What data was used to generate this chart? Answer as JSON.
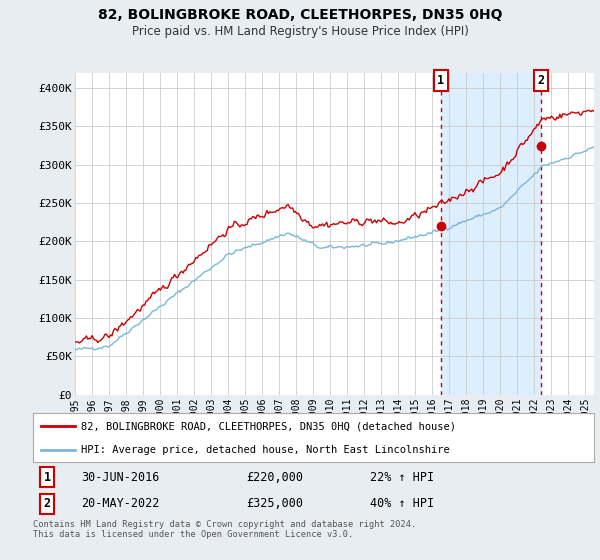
{
  "title": "82, BOLINGBROKE ROAD, CLEETHORPES, DN35 0HQ",
  "subtitle": "Price paid vs. HM Land Registry's House Price Index (HPI)",
  "ylabel_ticks": [
    "£0",
    "£50K",
    "£100K",
    "£150K",
    "£200K",
    "£250K",
    "£300K",
    "£350K",
    "£400K"
  ],
  "ytick_values": [
    0,
    50000,
    100000,
    150000,
    200000,
    250000,
    300000,
    350000,
    400000
  ],
  "ylim": [
    0,
    420000
  ],
  "xlim_start": 1995.0,
  "xlim_end": 2025.5,
  "hpi_color": "#7ab8d8",
  "price_color": "#cc0000",
  "shade_color": "#ddeeff",
  "background_color": "#e8edf2",
  "plot_bg_color": "#ffffff",
  "grid_color": "#cccccc",
  "legend_label_price": "82, BOLINGBROKE ROAD, CLEETHORPES, DN35 0HQ (detached house)",
  "legend_label_hpi": "HPI: Average price, detached house, North East Lincolnshire",
  "sale1_label": "1",
  "sale1_date": "30-JUN-2016",
  "sale1_price": "£220,000",
  "sale1_hpi": "22% ↑ HPI",
  "sale1_year": 2016.5,
  "sale1_value": 220000,
  "sale2_label": "2",
  "sale2_date": "20-MAY-2022",
  "sale2_price": "£325,000",
  "sale2_hpi": "40% ↑ HPI",
  "sale2_year": 2022.38,
  "sale2_value": 325000,
  "footer": "Contains HM Land Registry data © Crown copyright and database right 2024.\nThis data is licensed under the Open Government Licence v3.0.",
  "xtick_years": [
    1995,
    1996,
    1997,
    1998,
    1999,
    2000,
    2001,
    2002,
    2003,
    2004,
    2005,
    2006,
    2007,
    2008,
    2009,
    2010,
    2011,
    2012,
    2013,
    2014,
    2015,
    2016,
    2017,
    2018,
    2019,
    2020,
    2021,
    2022,
    2023,
    2024,
    2025
  ]
}
